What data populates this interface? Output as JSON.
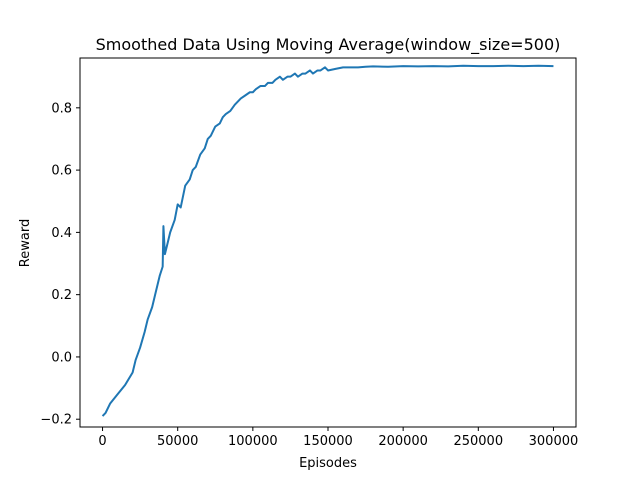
{
  "chart_data": {
    "type": "line",
    "title": "Smoothed Data Using Moving Average(window_size=500)",
    "xlabel": "Episodes",
    "ylabel": "Reward",
    "xlim": [
      -15000,
      315000
    ],
    "ylim": [
      -0.225,
      0.96
    ],
    "x_ticks": [
      0,
      50000,
      100000,
      150000,
      200000,
      250000,
      300000
    ],
    "x_tick_labels": [
      "0",
      "50000",
      "100000",
      "150000",
      "200000",
      "250000",
      "300000"
    ],
    "y_ticks": [
      -0.2,
      0.0,
      0.2,
      0.4,
      0.6,
      0.8
    ],
    "y_tick_labels": [
      "−0.2",
      "0.0",
      "0.2",
      "0.4",
      "0.6",
      "0.8"
    ],
    "grid": false,
    "legend": "none",
    "series": [
      {
        "color": "#1f77b4",
        "x": [
          0,
          2000,
          5000,
          10000,
          15000,
          20000,
          22000,
          25000,
          28000,
          30000,
          33000,
          35000,
          38000,
          40000,
          40500,
          41500,
          43000,
          45000,
          48000,
          50000,
          52000,
          55000,
          58000,
          60000,
          62000,
          65000,
          68000,
          70000,
          72000,
          75000,
          78000,
          80000,
          82000,
          85000,
          88000,
          90000,
          92000,
          95000,
          98000,
          100000,
          102000,
          105000,
          108000,
          110000,
          113000,
          115000,
          118000,
          120000,
          123000,
          125000,
          128000,
          130000,
          133000,
          135000,
          138000,
          140000,
          143000,
          145000,
          148000,
          150000,
          155000,
          160000,
          165000,
          170000,
          175000,
          180000,
          190000,
          200000,
          210000,
          220000,
          230000,
          240000,
          250000,
          260000,
          270000,
          280000,
          290000,
          300000
        ],
        "y": [
          -0.19,
          -0.18,
          -0.15,
          -0.12,
          -0.09,
          -0.05,
          -0.01,
          0.03,
          0.08,
          0.12,
          0.16,
          0.2,
          0.26,
          0.29,
          0.42,
          0.33,
          0.36,
          0.4,
          0.44,
          0.49,
          0.48,
          0.55,
          0.57,
          0.6,
          0.61,
          0.65,
          0.67,
          0.7,
          0.71,
          0.74,
          0.75,
          0.77,
          0.78,
          0.79,
          0.81,
          0.82,
          0.83,
          0.84,
          0.85,
          0.85,
          0.86,
          0.87,
          0.87,
          0.88,
          0.88,
          0.89,
          0.9,
          0.89,
          0.9,
          0.9,
          0.91,
          0.9,
          0.91,
          0.91,
          0.92,
          0.91,
          0.92,
          0.92,
          0.93,
          0.92,
          0.925,
          0.93,
          0.93,
          0.93,
          0.932,
          0.933,
          0.932,
          0.934,
          0.933,
          0.934,
          0.933,
          0.935,
          0.934,
          0.934,
          0.935,
          0.934,
          0.935,
          0.934
        ]
      }
    ]
  }
}
